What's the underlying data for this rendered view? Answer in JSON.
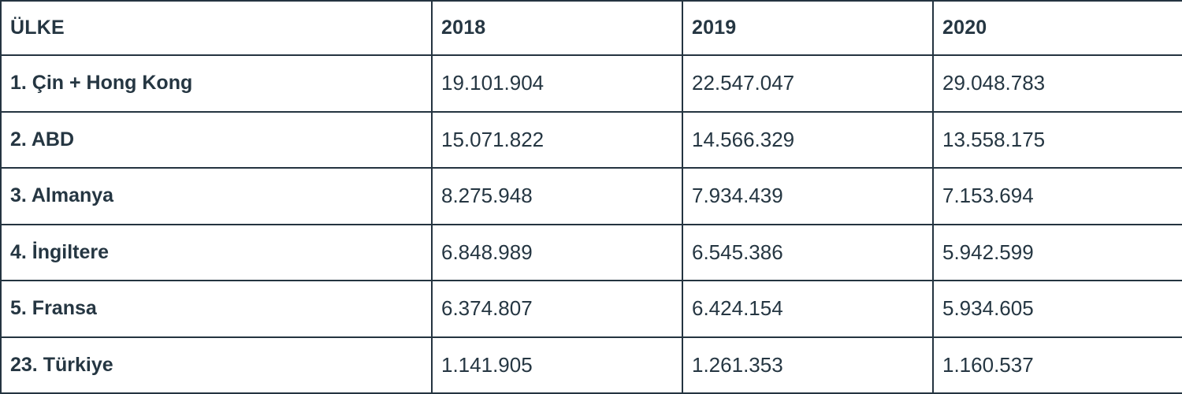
{
  "colors": {
    "background": "#ffffff",
    "border": "#243440",
    "text": "#253642"
  },
  "chart_data": {
    "type": "table",
    "title": "",
    "columns": [
      "ÜLKE",
      "2018",
      "2019",
      "2020"
    ],
    "rows": [
      [
        "1. Çin + Hong Kong",
        "19.101.904",
        "22.547.047",
        "29.048.783"
      ],
      [
        "2. ABD",
        "15.071.822",
        "14.566.329",
        "13.558.175"
      ],
      [
        "3. Almanya",
        "8.275.948",
        "7.934.439",
        "7.153.694"
      ],
      [
        "4. İngiltere",
        "6.848.989",
        "6.545.386",
        "5.942.599"
      ],
      [
        "5. Fransa",
        "6.374.807",
        "6.424.154",
        "5.934.605"
      ],
      [
        "23. Türkiye",
        "1.141.905",
        "1.261.353",
        "1.160.537"
      ]
    ]
  }
}
